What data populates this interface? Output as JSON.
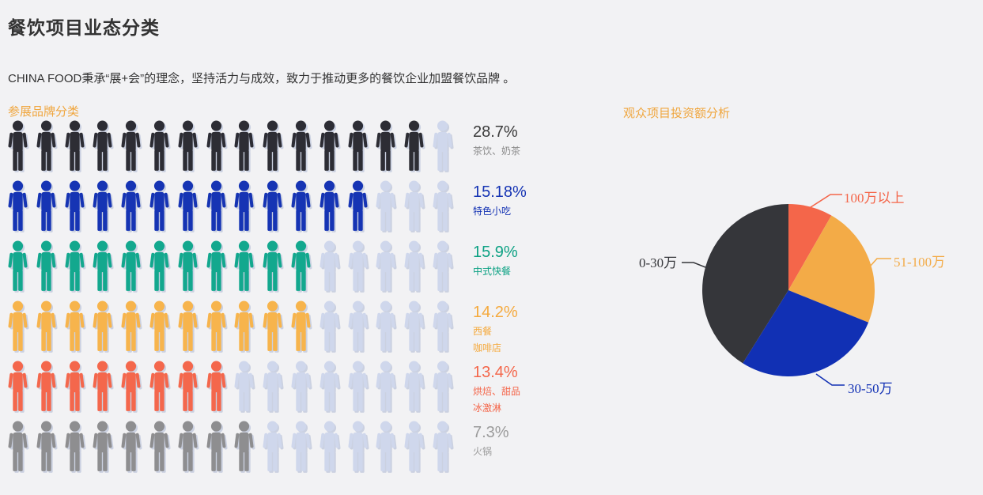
{
  "page": {
    "title": "餐饮项目业态分类",
    "subtitle": "CHINA FOOD秉承“展+会”的理念，坚持活力与成效，致力于推动更多的餐饮企业加盟餐饮品牌 。"
  },
  "pictogram": {
    "header": "参展品牌分类",
    "header_color": "#f0a63e",
    "icons_per_row": 16,
    "empty_color": "#cfd7ec",
    "rows": [
      {
        "percent": "28.7%",
        "categories": [
          "茶饮、奶茶"
        ],
        "filled": 15,
        "color": "#2d2d34",
        "percent_color": "#3a3a3a",
        "category_color": "#8a8a8a"
      },
      {
        "percent": "15.18%",
        "categories": [
          "特色小吃"
        ],
        "filled": 13,
        "color": "#1634b4",
        "percent_color": "#1634b4",
        "category_color": "#1634b4"
      },
      {
        "percent": "15.9%",
        "categories": [
          "中式快餐"
        ],
        "filled": 11,
        "color": "#13a88e",
        "percent_color": "#0ca183",
        "category_color": "#0ca183"
      },
      {
        "percent": "14.2%",
        "categories": [
          "西餐",
          "咖啡店"
        ],
        "filled": 11,
        "color": "#f7b44c",
        "percent_color": "#f5a93c",
        "category_color": "#f5a93c"
      },
      {
        "percent": "13.4%",
        "categories": [
          "烘焙、甜品",
          "冰激淋"
        ],
        "filled": 8,
        "color": "#f4674c",
        "percent_color": "#f4664a",
        "category_color": "#f4664a"
      },
      {
        "percent": "7.3%",
        "categories": [
          "火锅"
        ],
        "filled": 9,
        "color": "#8e8e90",
        "percent_color": "#9b9b9b",
        "category_color": "#9b9b9b"
      }
    ]
  },
  "pie": {
    "header": "观众项目投资额分析",
    "header_color": "#f0a63e",
    "slices": [
      {
        "label": "100万以上",
        "value": 8.3,
        "color": "#f4664a"
      },
      {
        "label": "51-100万",
        "value": 22.8,
        "color": "#f3ab47"
      },
      {
        "label": "30-50万",
        "value": 27.8,
        "color": "#1130b4"
      },
      {
        "label": "0-30万",
        "value": 41.1,
        "color": "#35363a"
      }
    ]
  },
  "chart_data": [
    {
      "type": "bar",
      "subtype": "pictogram",
      "title": "参展品牌分类",
      "categories": [
        "茶饮、奶茶",
        "特色小吃",
        "中式快餐",
        "西餐 咖啡店",
        "烘焙、甜品 冰激淋",
        "火锅"
      ],
      "values": [
        28.7,
        15.18,
        15.9,
        14.2,
        13.4,
        7.3
      ],
      "unit": "%",
      "icons_filled": [
        15,
        13,
        11,
        11,
        8,
        9
      ],
      "icons_total_per_row": 16,
      "colors": [
        "#2d2d34",
        "#1634b4",
        "#13a88e",
        "#f7b44c",
        "#f4674c",
        "#8e8e90"
      ]
    },
    {
      "type": "pie",
      "title": "观众项目投资额分析",
      "categories": [
        "100万以上",
        "51-100万",
        "30-50万",
        "0-30万"
      ],
      "values_percent_estimated": [
        8.3,
        22.8,
        27.8,
        41.1
      ],
      "colors": [
        "#f4664a",
        "#f3ab47",
        "#1130b4",
        "#35363a"
      ],
      "legend_position": "callout-labels",
      "start_angle_deg": 0,
      "direction": "clockwise"
    }
  ]
}
